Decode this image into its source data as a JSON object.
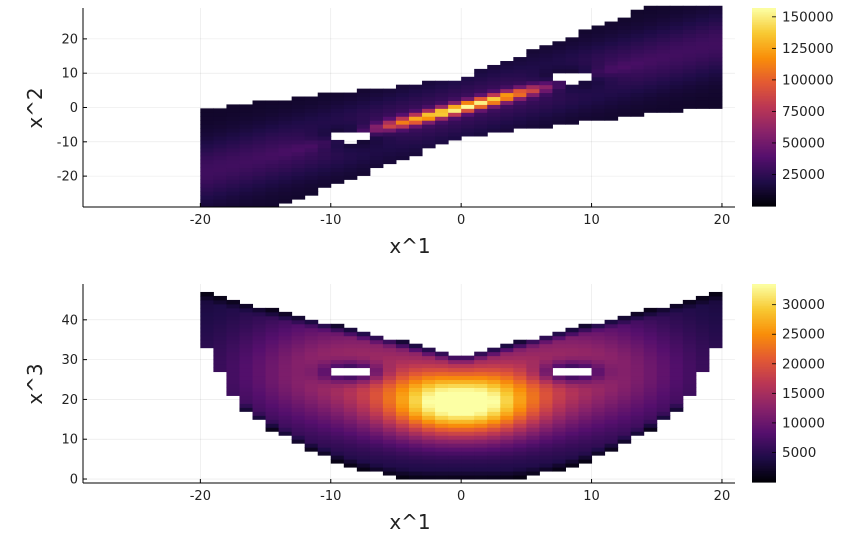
{
  "chart_data": [
    {
      "type": "heatmap",
      "xlabel": "x^1",
      "ylabel": "x^2",
      "xlim": [
        -29,
        21
      ],
      "ylim": [
        -29,
        29
      ],
      "xticks": [
        -20,
        -10,
        0,
        10,
        20
      ],
      "yticks": [
        -20,
        -10,
        0,
        10,
        20
      ],
      "grid": true,
      "colorbar": {
        "min": 0,
        "max": 157000,
        "ticks": [
          25000,
          50000,
          75000,
          100000,
          125000,
          150000
        ],
        "tick_labels": [
          "25000",
          "50000",
          "75000",
          "100000",
          "125000",
          "150000"
        ]
      },
      "colormap": [
        "#000004",
        "#1f0c48",
        "#550f6d",
        "#88226a",
        "#ba3655",
        "#e35933",
        "#f98e09",
        "#f8c932",
        "#fcffa4"
      ]
    },
    {
      "type": "heatmap",
      "xlabel": "x^1",
      "ylabel": "x^3",
      "xlim": [
        -29,
        21
      ],
      "ylim": [
        -1,
        49
      ],
      "xticks": [
        -20,
        -10,
        0,
        10,
        20
      ],
      "yticks": [
        0,
        10,
        20,
        30,
        40
      ],
      "grid": true,
      "colorbar": {
        "min": 0,
        "max": 33500,
        "ticks": [
          5000,
          10000,
          15000,
          20000,
          25000,
          30000
        ],
        "tick_labels": [
          "5000",
          "10000",
          "15000",
          "20000",
          "25000",
          "30000"
        ]
      },
      "colormap": [
        "#000004",
        "#1f0c48",
        "#550f6d",
        "#88226a",
        "#ba3655",
        "#e35933",
        "#f98e09",
        "#f8c932",
        "#fcffa4"
      ]
    }
  ]
}
